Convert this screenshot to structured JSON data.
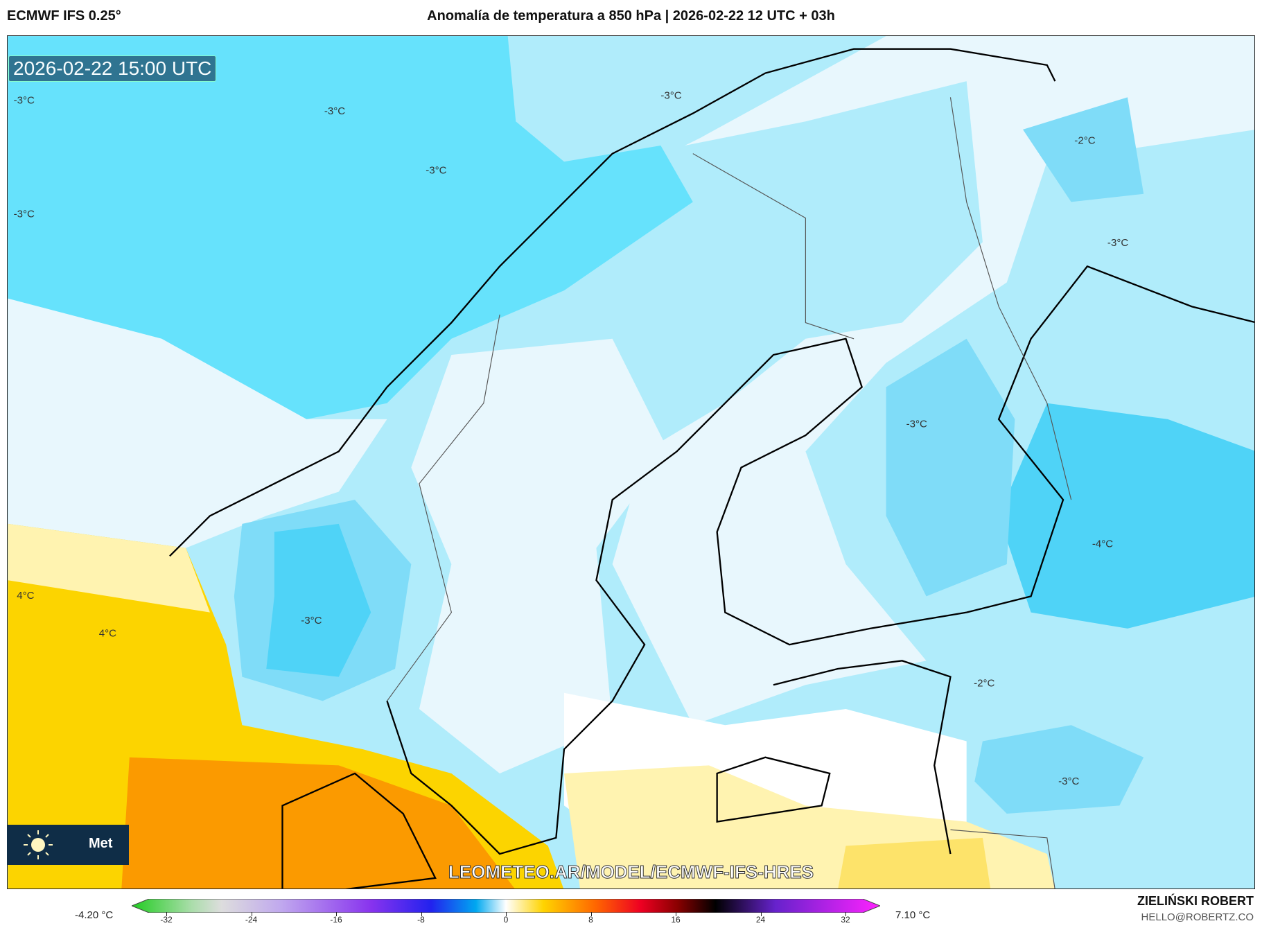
{
  "header": {
    "model": "ECMWF IFS 0.25°",
    "title": "Anomalía de temperatura a 850 hPa | 2026-02-22 12 UTC + 03h"
  },
  "map": {
    "valid_time": "2026-02-22 15:00 UTC",
    "watermark": "LEOMETEO.AR/MODEL/ECMWF-IFS-HRES",
    "logo_text": "Met",
    "contour_labels": [
      "-3°C",
      "-3°C",
      "-3°C",
      "-3°C",
      "-3°C",
      "-2°C",
      "-3°C",
      "-3°C",
      "-4°C",
      "-3°C",
      "-3°C",
      "4°C",
      "4°C",
      "-2°C"
    ],
    "colors": {
      "ocean_cold": "#66e2fc",
      "light_blue": "#b0ecfb",
      "pale": "#e8f7fd",
      "blue": "#4fd3f7",
      "yellow": "#fcd400",
      "orange": "#fb9a00",
      "pale_yellow": "#fff3b0"
    }
  },
  "colorbar": {
    "ticks": [
      "-32",
      "-24",
      "-16",
      "-8",
      "0",
      "8",
      "16",
      "24",
      "32"
    ],
    "range": [
      -32,
      32
    ],
    "min_label": "-4.20 °C",
    "max_label": "7.10 °C"
  },
  "credits": {
    "author": "ZIELIŃSKI ROBERT",
    "email": "HELLO@ROBERTZ.CO"
  }
}
